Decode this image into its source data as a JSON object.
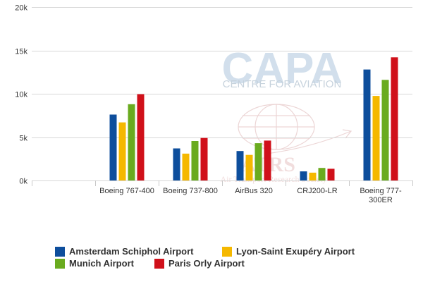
{
  "chart_data": {
    "type": "bar",
    "categories": [
      "",
      "Boeing 767-400",
      "Boeing 737-800",
      "AirBus 320",
      "CRJ200-LR",
      "Boeing 777-300ER"
    ],
    "category_lines": [
      [
        ""
      ],
      [
        "Boeing 767-400"
      ],
      [
        "Boeing 737-800"
      ],
      [
        "AirBus 320"
      ],
      [
        "CRJ200-LR"
      ],
      [
        "Boeing 777-",
        "300ER"
      ]
    ],
    "series": [
      {
        "name": "Amsterdam Schiphol Airport",
        "color": "#0d4e9c",
        "values": [
          0,
          7600,
          3700,
          3400,
          1050,
          12800
        ]
      },
      {
        "name": "Lyon-Saint Exupéry Airport",
        "color": "#f5b800",
        "values": [
          0,
          6700,
          3100,
          2950,
          900,
          9750
        ]
      },
      {
        "name": "Munich Airport",
        "color": "#6aab1f",
        "values": [
          0,
          8800,
          4550,
          4300,
          1450,
          11600
        ]
      },
      {
        "name": "Paris Orly Airport",
        "color": "#d0101a",
        "values": [
          0,
          9950,
          4900,
          4600,
          1350,
          14200
        ]
      }
    ],
    "ylim": [
      0,
      20000
    ],
    "yticks": [
      {
        "value": 0,
        "label": "0k"
      },
      {
        "value": 5000,
        "label": "5k"
      },
      {
        "value": 10000,
        "label": "10k"
      },
      {
        "value": 15000,
        "label": "15k"
      },
      {
        "value": 20000,
        "label": "20k"
      }
    ],
    "grid": true,
    "legend_position": "bottom"
  },
  "watermarks": {
    "capa_logo": "CAPA",
    "capa_subtitle": "CENTRE FOR AVIATION",
    "atrs_logo": "ATRS",
    "atrs_subtitle": "Air Transport Research Society"
  }
}
